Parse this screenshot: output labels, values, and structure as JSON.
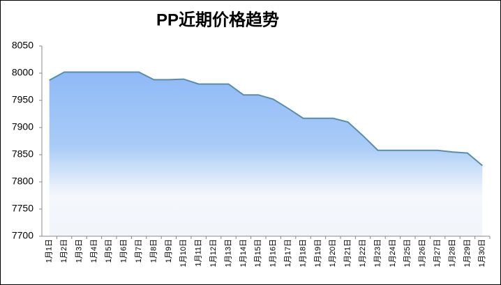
{
  "chart_data": {
    "type": "area",
    "title": "PP近期价格趋势",
    "categories": [
      "1月1日",
      "1月2日",
      "1月3日",
      "1月4日",
      "1月5日",
      "1月6日",
      "1月7日",
      "1月8日",
      "1月9日",
      "1月10日",
      "1月11日",
      "1月12日",
      "1月13日",
      "1月14日",
      "1月15日",
      "1月16日",
      "1月17日",
      "1月18日",
      "1月19日",
      "1月20日",
      "1月21日",
      "1月22日",
      "1月23日",
      "1月24日",
      "1月25日",
      "1月26日",
      "1月27日",
      "1月28日",
      "1月29日",
      "1月30日"
    ],
    "values": [
      7987,
      8002,
      8002,
      8002,
      8002,
      8002,
      8002,
      7988,
      7988,
      7989,
      7980,
      7980,
      7980,
      7960,
      7960,
      7952,
      7935,
      7917,
      7917,
      7917,
      7910,
      7885,
      7858,
      7858,
      7858,
      7858,
      7858,
      7855,
      7853,
      7830
    ],
    "color": "#5a8ea6",
    "ylim": [
      7700,
      8050
    ],
    "yticks": [
      7700,
      7750,
      7800,
      7850,
      7900,
      7950,
      8000,
      8050
    ]
  }
}
